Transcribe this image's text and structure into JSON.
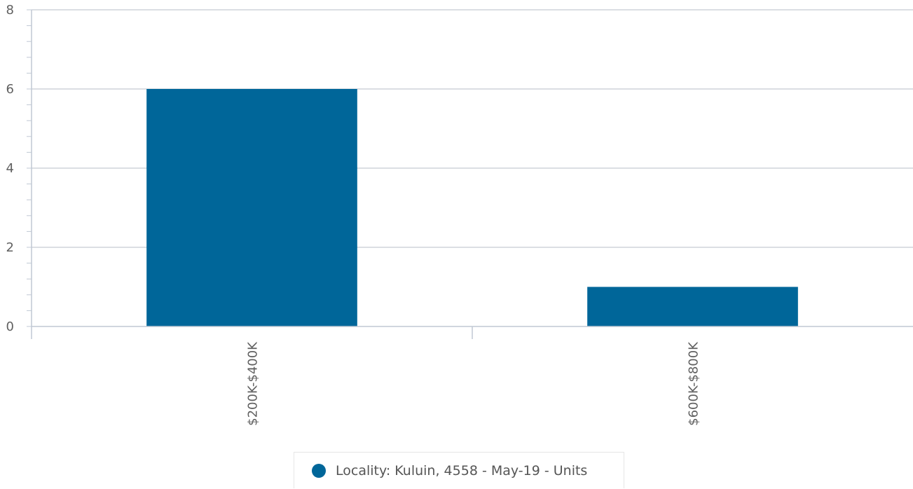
{
  "chart_data": {
    "type": "bar",
    "categories": [
      "$200K-$400K",
      "$600K-$800K"
    ],
    "series": [
      {
        "name": "Locality: Kuluin, 4558 - May-19 - Units",
        "values": [
          6,
          1
        ],
        "color": "#006699"
      }
    ],
    "y_ticks": [
      "0",
      "2",
      "4",
      "6",
      "8"
    ],
    "ylim": [
      0,
      8
    ],
    "grid": true,
    "legend_position": "bottom-center"
  }
}
